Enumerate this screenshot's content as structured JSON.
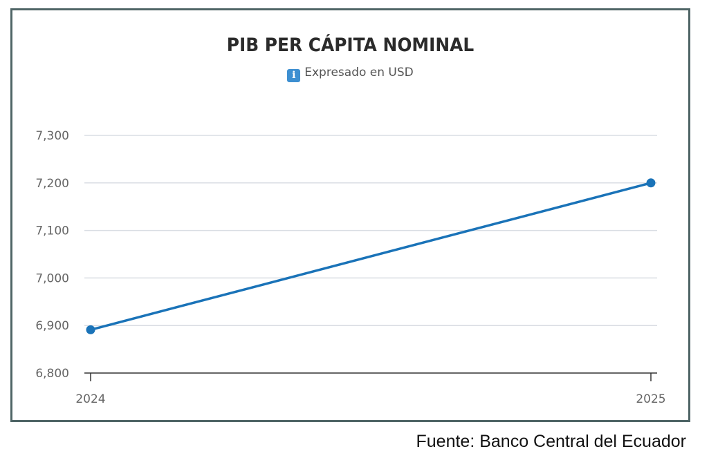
{
  "chart_data": {
    "type": "line",
    "title": "PIB PER CÁPITA NOMINAL",
    "subtitle": "Expresado en USD",
    "x": [
      "2024",
      "2025"
    ],
    "series": [
      {
        "values": [
          6891,
          7200
        ],
        "color": "#1a73b8"
      }
    ],
    "yticks": [
      "6,800",
      "6,900",
      "7,000",
      "7,100",
      "7,200",
      "7,300"
    ],
    "ylim": [
      6800,
      7300
    ],
    "grid": true
  },
  "icons": {
    "subtitle_icon": "info-icon"
  },
  "source": "Fuente: Banco Central del Ecuador"
}
